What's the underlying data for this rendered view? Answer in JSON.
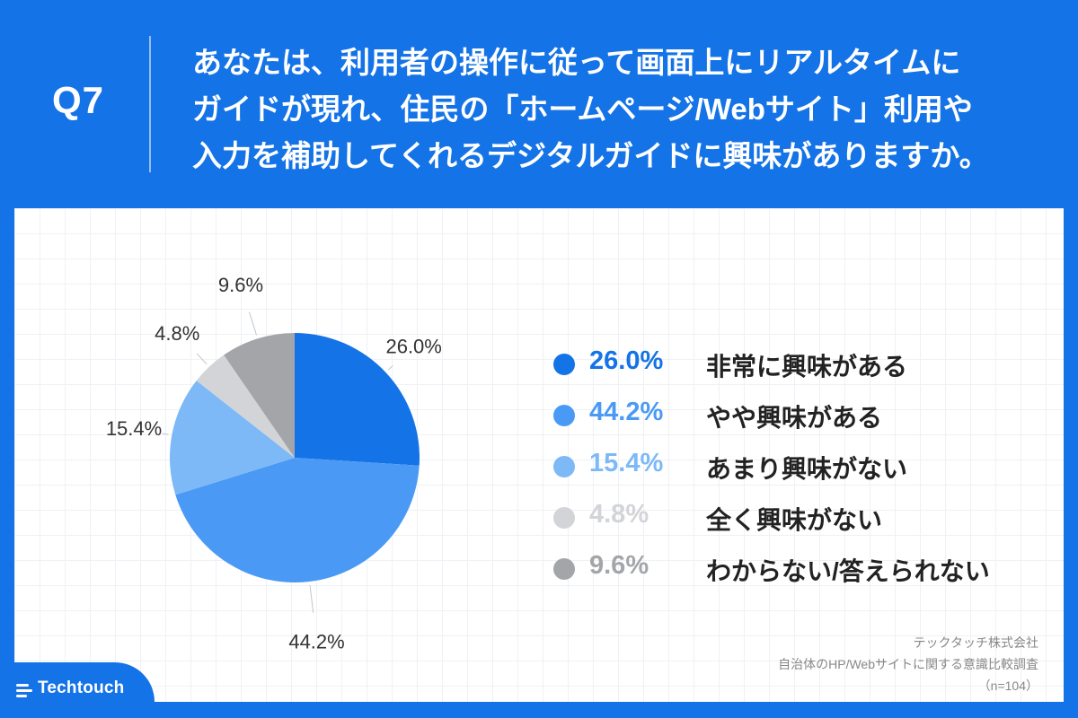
{
  "header": {
    "question_number": "Q7",
    "question_lines": [
      "あなたは、利用者の操作に従って画面上にリアルタイムに",
      "ガイドが現れ、住民の「ホームページ/Webサイト」利用や",
      "入力を補助してくれるデジタルガイドに興味がありますか。"
    ]
  },
  "chart_data": {
    "type": "pie",
    "start": "12 o'clock, clockwise",
    "categories": [
      "非常に興味がある",
      "やや興味がある",
      "あまり興味がない",
      "全く興味がない",
      "わからない/答えられない"
    ],
    "values": [
      26.0,
      44.2,
      15.4,
      4.8,
      9.6
    ],
    "value_labels": [
      "26.0%",
      "44.2%",
      "15.4%",
      "4.8%",
      "9.6%"
    ],
    "colors": [
      "#1473e6",
      "#4a9af5",
      "#7db9f7",
      "#d2d4d7",
      "#a3a5a9"
    ],
    "legend_position": "right"
  },
  "legend": [
    {
      "value": "26.0%",
      "label": "非常に興味がある",
      "color": "#1473e6"
    },
    {
      "value": "44.2%",
      "label": "やや興味がある",
      "color": "#4a9af5"
    },
    {
      "value": "15.4%",
      "label": "あまり興味がない",
      "color": "#7db9f7"
    },
    {
      "value": "4.8%",
      "label": "全く興味がない",
      "color": "#d2d4d7"
    },
    {
      "value": "9.6%",
      "label": "わからない/答えられない",
      "color": "#a3a5a9"
    }
  ],
  "source": {
    "company": "テックタッチ株式会社",
    "survey": "自治体のHP/Webサイトに関する意識比較調査",
    "sample": "（n=104）"
  },
  "branding": {
    "logo_text": "Techtouch"
  }
}
